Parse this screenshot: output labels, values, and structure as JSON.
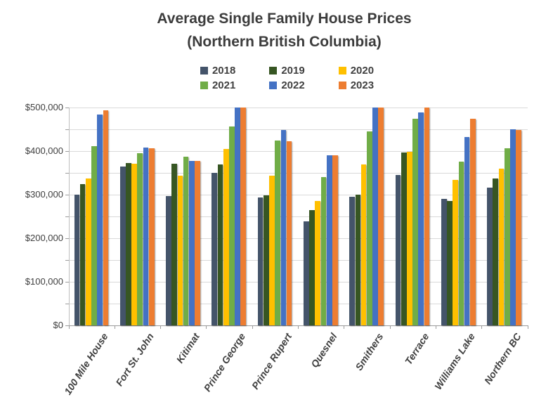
{
  "title": {
    "line1": "Average Single Family House Prices",
    "line2": "(Northern British Columbia)"
  },
  "legend": {
    "items": [
      {
        "label": "2018",
        "color": "#44546A"
      },
      {
        "label": "2019",
        "color": "#375623"
      },
      {
        "label": "2020",
        "color": "#FFC000"
      },
      {
        "label": "2021",
        "color": "#70AD47"
      },
      {
        "label": "2022",
        "color": "#4472C4"
      },
      {
        "label": "2023",
        "color": "#ED7D31"
      }
    ]
  },
  "y_axis": {
    "ticks": [
      {
        "value": 0,
        "label": "$0"
      },
      {
        "value": 100000,
        "label": "$100,000"
      },
      {
        "value": 200000,
        "label": "$200,000"
      },
      {
        "value": 300000,
        "label": "$300,000"
      },
      {
        "value": 400000,
        "label": "$400,000"
      },
      {
        "value": 500000,
        "label": "$500,000"
      }
    ]
  },
  "chart_data": {
    "type": "bar",
    "title": "Average Single Family House Prices (Northern British Columbia)",
    "categories": [
      "100 Mile House",
      "Fort St. John",
      "Kitimat",
      "Prince George",
      "Prince Rupert",
      "Quesnel",
      "Smithers",
      "Terrace",
      "Williams Lake",
      "Northern BC"
    ],
    "series": [
      {
        "name": "2018",
        "color": "#44546A",
        "values": [
          300000,
          364000,
          296000,
          350000,
          293000,
          238000,
          295000,
          345000,
          290000,
          316000
        ]
      },
      {
        "name": "2019",
        "color": "#375623",
        "values": [
          324000,
          373000,
          371000,
          370000,
          298000,
          265000,
          300000,
          396000,
          286000,
          337000
        ]
      },
      {
        "name": "2020",
        "color": "#FFC000",
        "values": [
          337000,
          371000,
          343000,
          405000,
          343000,
          285000,
          369000,
          399000,
          334000,
          359000
        ]
      },
      {
        "name": "2021",
        "color": "#70AD47",
        "values": [
          412000,
          395000,
          387000,
          457000,
          425000,
          340000,
          445000,
          474000,
          376000,
          407000
        ]
      },
      {
        "name": "2022",
        "color": "#4472C4",
        "values": [
          484000,
          408000,
          378000,
          500000,
          448000,
          390000,
          500000,
          488000,
          432000,
          450000
        ]
      },
      {
        "name": "2023",
        "color": "#ED7D31",
        "values": [
          493000,
          406000,
          377000,
          500000,
          422000,
          390000,
          500000,
          500000,
          475000,
          448000
        ]
      }
    ],
    "ylim": [
      0,
      500000
    ],
    "y_minor_gridline_interval": 50000,
    "y_major_tick_interval": 100000,
    "grid": true,
    "legend_position": "top"
  }
}
